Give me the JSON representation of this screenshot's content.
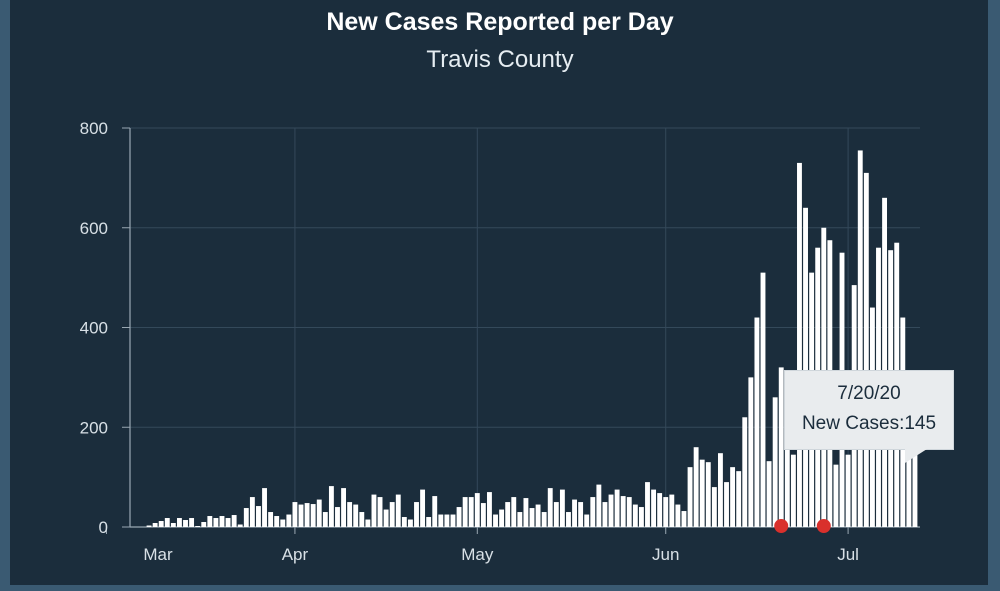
{
  "chart_data": {
    "type": "bar",
    "title": "New Cases Reported per Day",
    "subtitle": "Travis County",
    "xlabel": "",
    "ylabel": "",
    "ylim": [
      0,
      800
    ],
    "y_ticks": [
      0,
      200,
      400,
      600,
      800
    ],
    "x_ticks": [
      {
        "label": "Mar",
        "index": -7
      },
      {
        "label": "Apr",
        "index": 24
      },
      {
        "label": "May",
        "index": 54
      },
      {
        "label": "Jun",
        "index": 85
      },
      {
        "label": "Jul",
        "index": 115
      }
    ],
    "values": [
      3,
      8,
      12,
      18,
      8,
      18,
      14,
      18,
      2,
      10,
      22,
      18,
      22,
      18,
      24,
      5,
      38,
      60,
      42,
      78,
      30,
      22,
      15,
      25,
      50,
      45,
      48,
      46,
      55,
      30,
      82,
      40,
      78,
      50,
      45,
      30,
      15,
      65,
      60,
      35,
      50,
      65,
      20,
      15,
      50,
      75,
      20,
      62,
      25,
      25,
      25,
      40,
      60,
      60,
      68,
      48,
      70,
      25,
      35,
      50,
      60,
      30,
      58,
      38,
      45,
      30,
      78,
      50,
      75,
      30,
      55,
      50,
      25,
      60,
      85,
      50,
      65,
      75,
      62,
      60,
      45,
      40,
      90,
      75,
      68,
      60,
      65,
      45,
      32,
      120,
      160,
      135,
      130,
      80,
      148,
      90,
      120,
      112,
      220,
      300,
      420,
      510,
      132,
      260,
      320,
      180,
      145,
      730,
      640,
      510,
      560,
      600,
      575,
      125,
      550,
      145,
      485,
      755,
      710,
      440,
      560,
      660,
      555,
      570,
      420,
      240,
      145
    ],
    "highlight_color": "#d9302c",
    "highlight_indices": [
      104,
      111
    ],
    "bar_color": "#ffffff",
    "background": "#1b2d3c"
  },
  "tooltip": {
    "date": "7/20/20",
    "label": "New Cases:",
    "value": "145",
    "text": "New Cases:145"
  }
}
